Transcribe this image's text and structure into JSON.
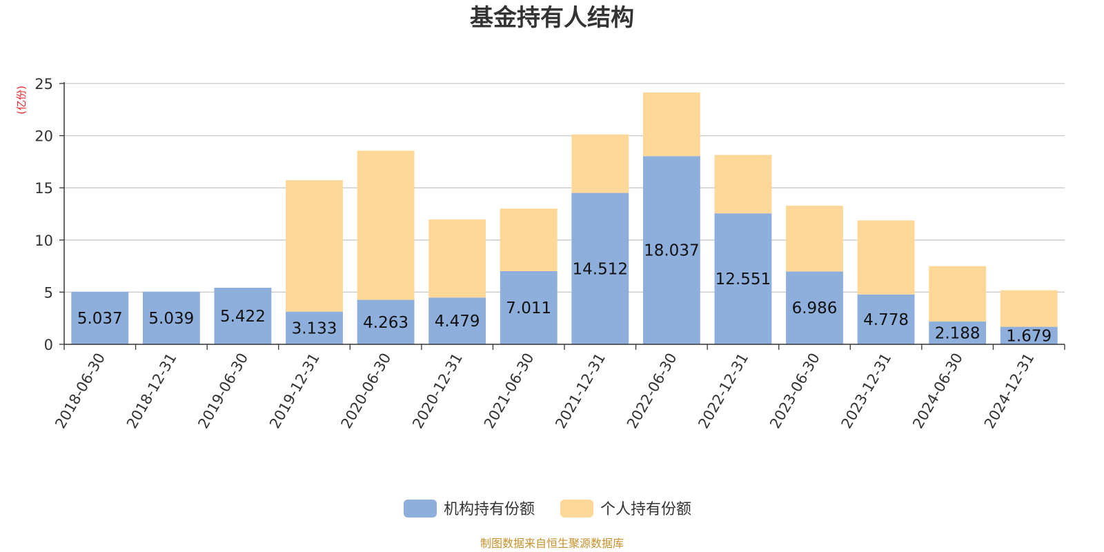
{
  "chart_data": {
    "type": "bar",
    "stacked": true,
    "title": "基金持有人结构",
    "ylabel": "(亿份)",
    "xlabel": "",
    "ylim": [
      0,
      25
    ],
    "yticks": [
      0,
      5,
      10,
      15,
      20,
      25
    ],
    "grid": true,
    "legend_position": "bottom-center",
    "categories": [
      "2018-06-30",
      "2018-12-31",
      "2019-06-30",
      "2019-12-31",
      "2020-06-30",
      "2020-12-31",
      "2021-06-30",
      "2021-12-31",
      "2022-06-30",
      "2022-12-31",
      "2023-06-30",
      "2023-12-31",
      "2024-06-30",
      "2024-12-31"
    ],
    "series": [
      {
        "name": "机构持有份额",
        "color": "#8eaedb",
        "values": [
          5.037,
          5.039,
          5.422,
          3.133,
          4.263,
          4.479,
          7.011,
          14.512,
          18.037,
          12.551,
          6.986,
          4.778,
          2.188,
          1.679
        ],
        "labels": [
          "5.037",
          "5.039",
          "5.422",
          "3.133",
          "4.263",
          "4.479",
          "7.011",
          "14.512",
          "18.037",
          "12.551",
          "6.986",
          "4.778",
          "2.188",
          "1.679"
        ]
      },
      {
        "name": "个人持有份额",
        "color": "#fed898",
        "values": [
          0.0,
          0.0,
          0.0,
          12.6,
          14.3,
          7.5,
          6.0,
          5.6,
          6.1,
          5.6,
          6.3,
          7.1,
          5.3,
          3.5
        ]
      }
    ],
    "source": "制图数据来自恒生聚源数据库"
  }
}
